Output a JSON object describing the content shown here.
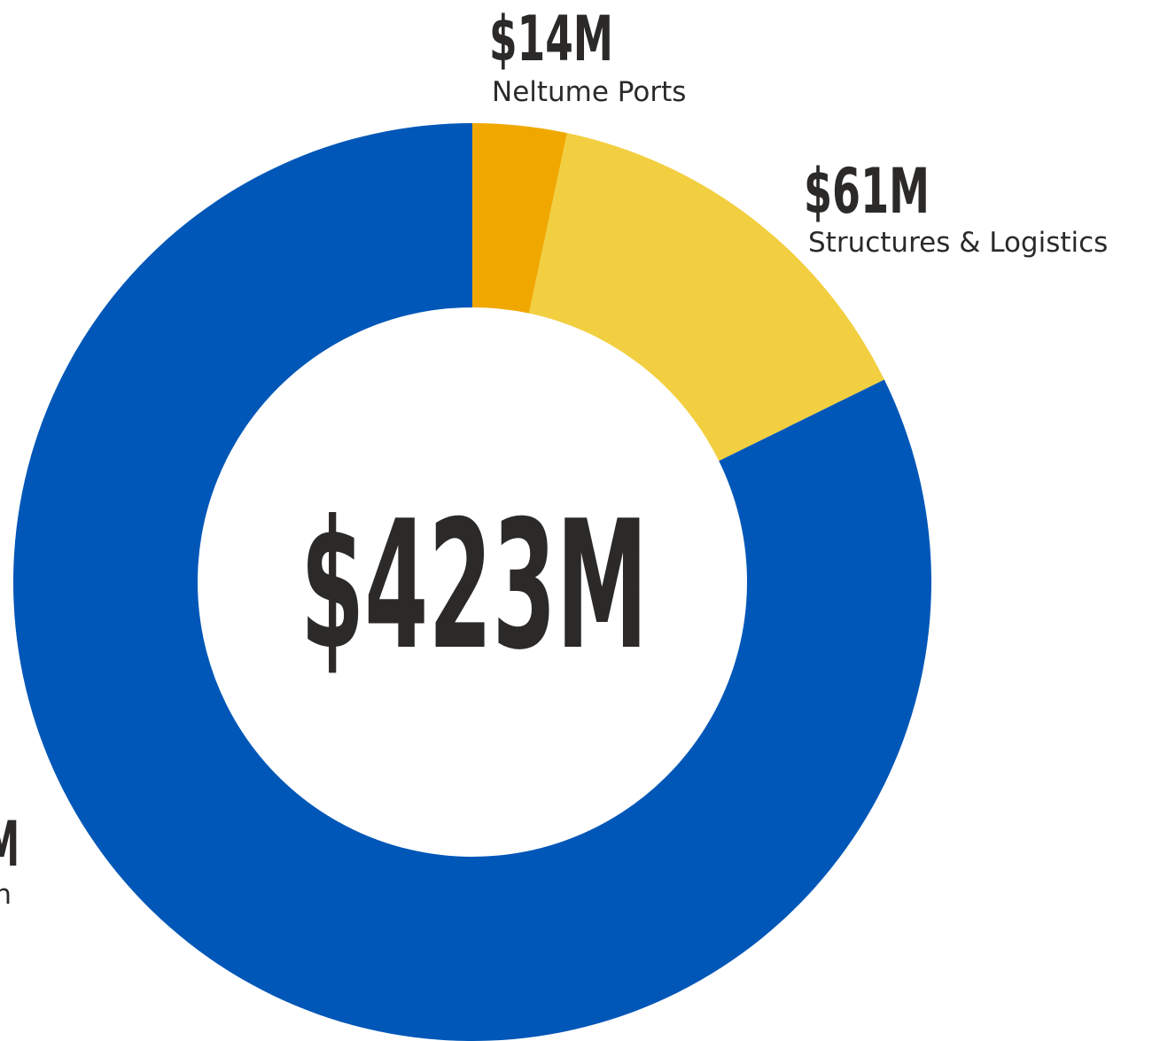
{
  "chart_data": {
    "type": "donut",
    "center_label": "$423M",
    "categories": [
      "Neltume Ports",
      "Structures & Logistics",
      "n"
    ],
    "values": [
      14,
      61,
      348
    ],
    "value_labels": [
      "$14M",
      "$61M",
      "M"
    ],
    "colors": [
      "#f0a800",
      "#f2cf40",
      "#0057b8"
    ]
  }
}
